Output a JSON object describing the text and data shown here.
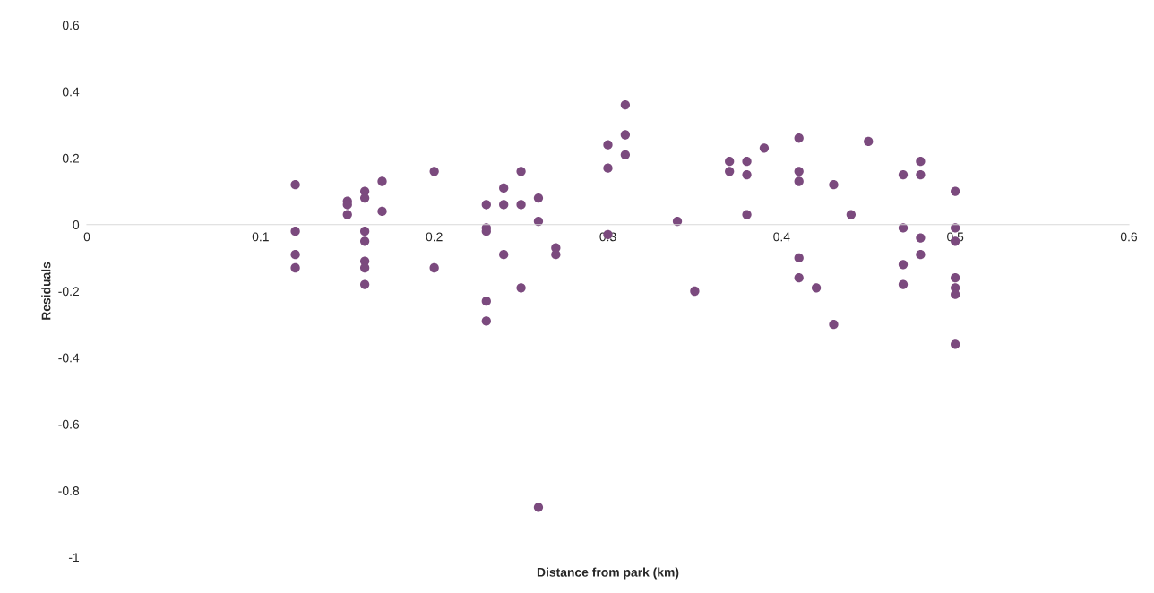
{
  "chart_data": {
    "type": "scatter",
    "xlabel": "Distance from park (km)",
    "ylabel": "Residuals",
    "x": [
      0.12,
      0.12,
      0.12,
      0.12,
      0.15,
      0.15,
      0.15,
      0.16,
      0.16,
      0.16,
      0.16,
      0.16,
      0.16,
      0.16,
      0.17,
      0.17,
      0.2,
      0.2,
      0.23,
      0.23,
      0.23,
      0.23,
      0.23,
      0.24,
      0.24,
      0.24,
      0.25,
      0.25,
      0.25,
      0.26,
      0.26,
      0.26,
      0.27,
      0.27,
      0.3,
      0.3,
      0.3,
      0.31,
      0.31,
      0.31,
      0.34,
      0.35,
      0.37,
      0.37,
      0.38,
      0.38,
      0.38,
      0.39,
      0.41,
      0.41,
      0.41,
      0.41,
      0.41,
      0.42,
      0.43,
      0.43,
      0.44,
      0.45,
      0.47,
      0.47,
      0.47,
      0.47,
      0.48,
      0.48,
      0.48,
      0.48,
      0.5,
      0.5,
      0.5,
      0.5,
      0.5,
      0.5,
      0.5
    ],
    "values": [
      0.12,
      -0.02,
      -0.09,
      -0.13,
      0.07,
      0.06,
      0.03,
      0.1,
      0.08,
      -0.02,
      -0.05,
      -0.11,
      -0.13,
      -0.18,
      0.13,
      0.04,
      0.16,
      -0.13,
      0.06,
      -0.01,
      -0.02,
      -0.23,
      -0.29,
      0.11,
      0.06,
      -0.09,
      0.16,
      0.06,
      -0.19,
      0.08,
      0.01,
      -0.85,
      -0.07,
      -0.09,
      0.24,
      0.17,
      -0.03,
      0.36,
      0.27,
      0.21,
      0.01,
      -0.2,
      0.19,
      0.16,
      0.19,
      0.15,
      0.03,
      0.23,
      0.26,
      0.16,
      0.13,
      -0.1,
      -0.16,
      -0.19,
      0.12,
      -0.3,
      0.03,
      0.25,
      0.15,
      -0.01,
      -0.12,
      -0.18,
      0.19,
      0.15,
      -0.04,
      -0.09,
      0.1,
      -0.01,
      -0.05,
      -0.16,
      -0.19,
      -0.21,
      -0.36
    ],
    "color": "#7b4a7e",
    "marker": "circle",
    "grid": false,
    "xlim": [
      0,
      0.6
    ],
    "xticks": [
      0,
      0.1,
      0.2,
      0.3,
      0.4,
      0.5,
      0.6
    ],
    "ylim": [
      -1,
      0.6
    ],
    "yticks": [
      -1,
      -0.8,
      -0.6,
      -0.4,
      -0.2,
      0,
      0.2,
      0.4,
      0.6
    ]
  }
}
